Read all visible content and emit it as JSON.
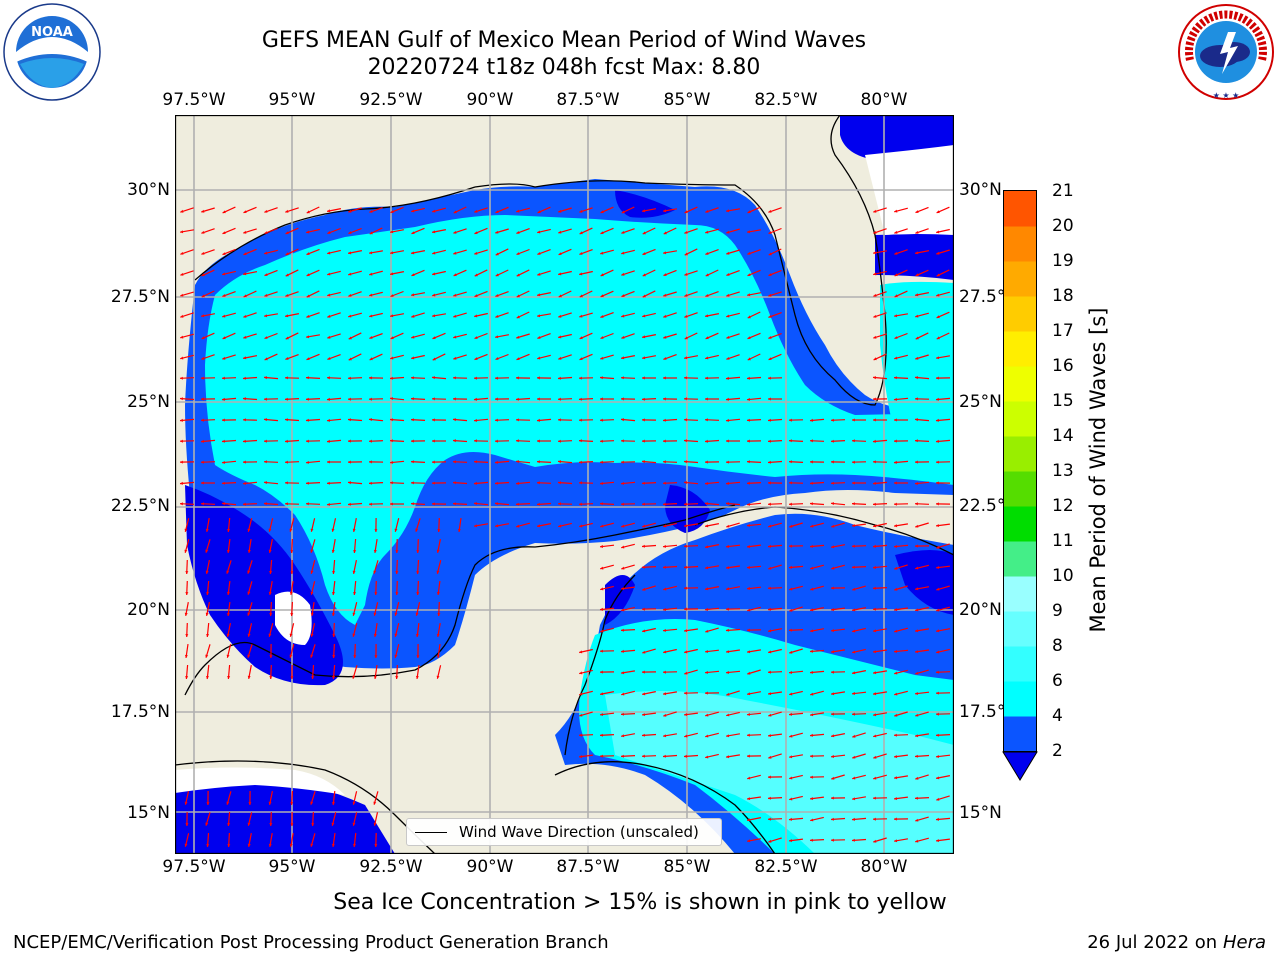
{
  "title_line1": "GEFS MEAN Gulf of Mexico Mean Period of Wind Waves",
  "title_line2": "20220724 t18z 048h fcst   Max: 8.80",
  "lon_ticks": [
    "97.5°W",
    "95°W",
    "92.5°W",
    "90°W",
    "87.5°W",
    "85°W",
    "82.5°W",
    "80°W"
  ],
  "lat_ticks": [
    "30°N",
    "27.5°N",
    "25°N",
    "22.5°N",
    "20°N",
    "17.5°N",
    "15°N"
  ],
  "colorbar": {
    "label": "Mean Period of Wind Waves [s]",
    "ticks": [
      "2",
      "4",
      "6",
      "8",
      "9",
      "10",
      "11",
      "12",
      "13",
      "14",
      "15",
      "16",
      "17",
      "18",
      "19",
      "20",
      "21"
    ],
    "colors": [
      "#0b55ff",
      "#00ffff",
      "#33ffff",
      "#66ffff",
      "#99ffff",
      "#44ee88",
      "#00dd00",
      "#55dd00",
      "#99ee00",
      "#ccff00",
      "#eeff00",
      "#ffee00",
      "#ffcc00",
      "#ffaa00",
      "#ff8800",
      "#ff5500",
      "#ff2200",
      "#ff0000"
    ],
    "under_color": "#0000ee"
  },
  "legend": {
    "label": "Wind Wave Direction (unscaled)"
  },
  "note": "Sea Ice Concentration > 15% is shown in pink to yellow",
  "footer_left": "NCEP/EMC/Verification Post Processing Product Generation Branch",
  "footer_right_date": "26 Jul 2022 on ",
  "footer_right_machine": "Hera",
  "logos": {
    "noaa": "NOAA",
    "nws": "NATIONAL WEATHER SERVICE"
  },
  "colors": {
    "land": "#efedde",
    "grid": "#b0b0b0",
    "arrow": "#ff0000"
  }
}
